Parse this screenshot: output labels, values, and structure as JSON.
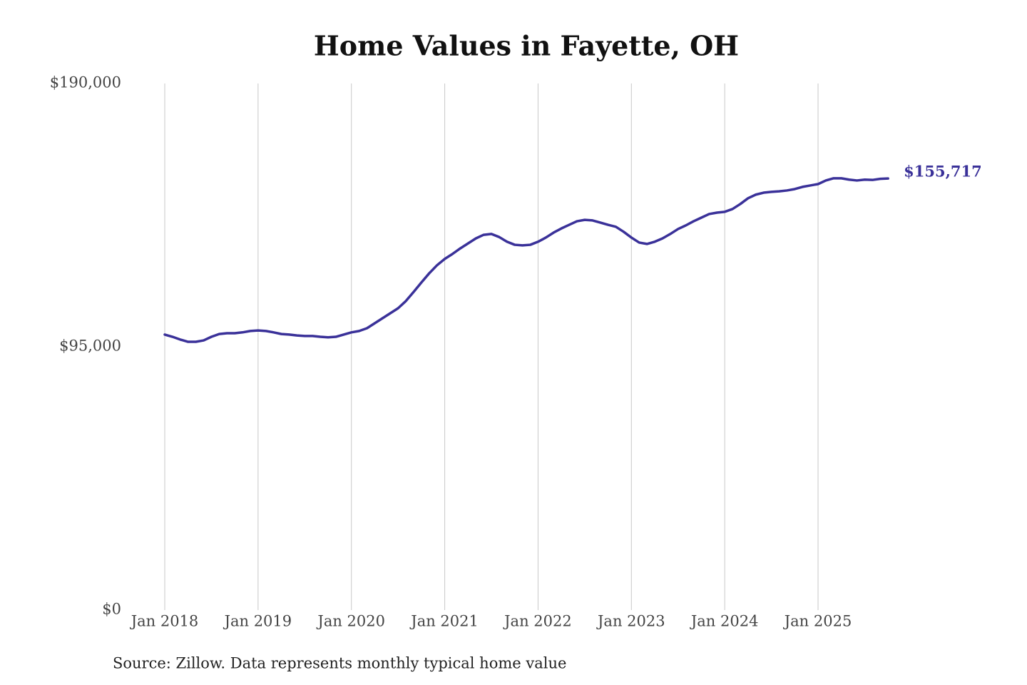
{
  "chart_data": {
    "type": "line",
    "title": "Home Values in Fayette, OH",
    "source": "Source: Zillow. Data represents monthly typical home value",
    "x": [
      "2018-01",
      "2018-02",
      "2018-03",
      "2018-04",
      "2018-05",
      "2018-06",
      "2018-07",
      "2018-08",
      "2018-09",
      "2018-10",
      "2018-11",
      "2018-12",
      "2019-01",
      "2019-02",
      "2019-03",
      "2019-04",
      "2019-05",
      "2019-06",
      "2019-07",
      "2019-08",
      "2019-09",
      "2019-10",
      "2019-11",
      "2019-12",
      "2020-01",
      "2020-02",
      "2020-03",
      "2020-04",
      "2020-05",
      "2020-06",
      "2020-07",
      "2020-08",
      "2020-09",
      "2020-10",
      "2020-11",
      "2020-12",
      "2021-01",
      "2021-02",
      "2021-03",
      "2021-04",
      "2021-05",
      "2021-06",
      "2021-07",
      "2021-08",
      "2021-09",
      "2021-10",
      "2021-11",
      "2021-12",
      "2022-01",
      "2022-02",
      "2022-03",
      "2022-04",
      "2022-05",
      "2022-06",
      "2022-07",
      "2022-08",
      "2022-09",
      "2022-10",
      "2022-11",
      "2022-12",
      "2023-01",
      "2023-02",
      "2023-03",
      "2023-04",
      "2023-05",
      "2023-06",
      "2023-07",
      "2023-08",
      "2023-09",
      "2023-10",
      "2023-11",
      "2023-12",
      "2024-01",
      "2024-02",
      "2024-03",
      "2024-04",
      "2024-05",
      "2024-06",
      "2024-07",
      "2024-08",
      "2024-09",
      "2024-10",
      "2024-11",
      "2024-12",
      "2025-01",
      "2025-02",
      "2025-03",
      "2025-04",
      "2025-05",
      "2025-06",
      "2025-07",
      "2025-08",
      "2025-09",
      "2025-10"
    ],
    "series": [
      {
        "name": "Fayette, OH",
        "color": "#3a3199",
        "values": [
          99400,
          98600,
          97600,
          96800,
          96800,
          97300,
          98600,
          99600,
          99900,
          99900,
          100200,
          100700,
          100900,
          100700,
          100200,
          99600,
          99400,
          99100,
          98900,
          98900,
          98600,
          98400,
          98600,
          99400,
          100200,
          100700,
          101700,
          103500,
          105300,
          107100,
          108900,
          111500,
          114800,
          118200,
          121500,
          124400,
          126700,
          128500,
          130500,
          132300,
          134100,
          135400,
          135700,
          134600,
          132900,
          131800,
          131600,
          131800,
          132900,
          134400,
          136200,
          137700,
          139000,
          140300,
          140800,
          140600,
          139800,
          139000,
          138300,
          136500,
          134400,
          132600,
          132100,
          132900,
          134100,
          135700,
          137500,
          138800,
          140300,
          141600,
          142900,
          143400,
          143700,
          144700,
          146500,
          148600,
          149900,
          150600,
          150900,
          151100,
          151400,
          151900,
          152700,
          153200,
          153700,
          155000,
          155800,
          155800,
          155300,
          155000,
          155300,
          155200,
          155600,
          155717
        ],
        "value_labels": [
          null,
          null,
          null,
          null,
          null,
          null,
          null,
          null,
          null,
          null,
          null,
          null,
          null,
          null,
          null,
          null,
          null,
          null,
          null,
          null,
          null,
          null,
          null,
          null,
          null,
          null,
          null,
          null,
          null,
          null,
          null,
          null,
          null,
          null,
          null,
          null,
          null,
          null,
          null,
          null,
          null,
          null,
          null,
          null,
          null,
          null,
          null,
          null,
          null,
          null,
          null,
          null,
          null,
          null,
          null,
          null,
          null,
          null,
          null,
          null,
          null,
          null,
          null,
          null,
          null,
          null,
          null,
          null,
          null,
          null,
          null,
          null,
          null,
          null,
          null,
          null,
          null,
          null,
          null,
          null,
          null,
          null,
          null,
          null,
          null,
          null,
          null,
          null,
          null,
          null,
          null,
          null,
          null,
          "$155,717"
        ]
      }
    ],
    "ylim": [
      0,
      190000
    ],
    "yticks": [
      {
        "value": 0,
        "label": "$0"
      },
      {
        "value": 95000,
        "label": "$95,000"
      },
      {
        "value": 190000,
        "label": "$190,000"
      }
    ],
    "xticks": [
      {
        "value": "2018-01",
        "label": "Jan 2018"
      },
      {
        "value": "2019-01",
        "label": "Jan 2019"
      },
      {
        "value": "2020-01",
        "label": "Jan 2020"
      },
      {
        "value": "2021-01",
        "label": "Jan 2021"
      },
      {
        "value": "2022-01",
        "label": "Jan 2022"
      },
      {
        "value": "2023-01",
        "label": "Jan 2023"
      },
      {
        "value": "2024-01",
        "label": "Jan 2024"
      },
      {
        "value": "2025-01",
        "label": "Jan 2025"
      }
    ],
    "grid": "x"
  }
}
